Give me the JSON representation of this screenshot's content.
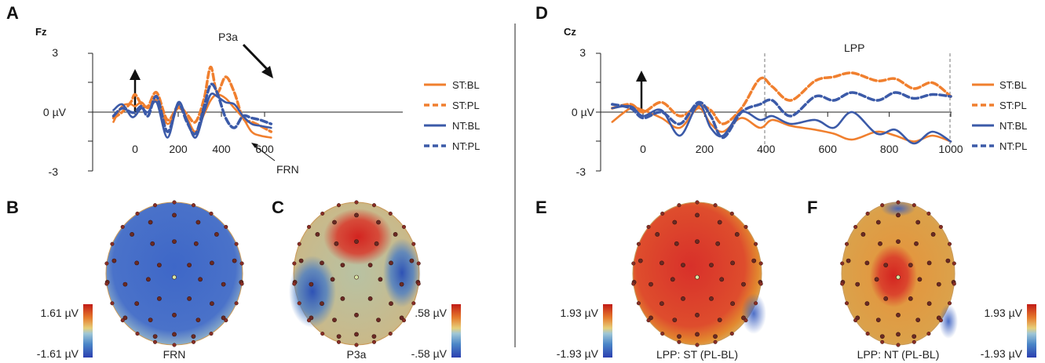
{
  "panels": {
    "A": "A",
    "B": "B",
    "C": "C",
    "D": "D",
    "E": "E",
    "F": "F"
  },
  "erp_left": {
    "electrode": "Fz",
    "y_ticks": [
      "3",
      "0 µV",
      "-3"
    ],
    "x_ticks": [
      "0",
      "200",
      "400",
      "600"
    ],
    "annotations": {
      "p3a": "P3a",
      "frn": "FRN"
    }
  },
  "erp_right": {
    "electrode": "Cz",
    "y_ticks": [
      "3",
      "0 µV",
      "-3"
    ],
    "x_ticks": [
      "0",
      "200",
      "400",
      "600",
      "800",
      "1000"
    ],
    "window_label": "LPP"
  },
  "legend_left": [
    "ST:BL",
    "ST:PL",
    "NT:BL",
    "NT:PL"
  ],
  "legend_right": [
    "ST:BL",
    "ST:PL",
    "NT:BL",
    "NT:PL"
  ],
  "topo": {
    "B": {
      "caption": "FRN",
      "max": "1.61 µV",
      "min": "-1.61 µV"
    },
    "C": {
      "caption": "P3a",
      "max": ".58 µV",
      "min": "-.58 µV"
    },
    "E": {
      "caption": "LPP: ST (PL-BL)",
      "max": "1.93 µV",
      "min": "-1.93 µV"
    },
    "F": {
      "caption": "LPP: NT (PL-BL)",
      "max": "1.93 µV",
      "min": "-1.93 µV"
    }
  },
  "colors": {
    "st": "#f07f2e",
    "nt": "#3b5aa8",
    "red": "#d7261e",
    "blue": "#2c4db3"
  },
  "chart_data": [
    {
      "type": "line",
      "title": "Fz",
      "xlim": [
        -100,
        630
      ],
      "ylim": [
        -3,
        3
      ],
      "series": [
        {
          "name": "ST:BL",
          "x": [
            -100,
            -60,
            -20,
            0,
            30,
            60,
            100,
            150,
            200,
            240,
            280,
            320,
            350,
            380,
            420,
            460,
            500,
            540,
            580,
            630
          ],
          "y": [
            -0.5,
            0.3,
            0.4,
            0.3,
            0.5,
            0.2,
            0.6,
            -0.6,
            0.2,
            -0.3,
            -1.0,
            -0.1,
            0.6,
            0.9,
            0.7,
            0.2,
            -0.3,
            -1.0,
            -1.2,
            -1.3
          ]
        },
        {
          "name": "ST:PL",
          "x": [
            -100,
            -60,
            -20,
            0,
            30,
            60,
            100,
            150,
            200,
            240,
            280,
            320,
            350,
            380,
            420,
            460,
            500,
            540,
            580,
            630
          ],
          "y": [
            -0.3,
            0.0,
            0.5,
            0.9,
            0.4,
            0.3,
            1.0,
            -0.4,
            0.3,
            -0.1,
            -0.5,
            0.7,
            2.3,
            1.0,
            1.8,
            1.0,
            -0.3,
            -0.5,
            -0.7,
            -1.0
          ]
        },
        {
          "name": "NT:BL",
          "x": [
            -100,
            -60,
            -20,
            0,
            30,
            60,
            100,
            150,
            200,
            240,
            280,
            320,
            350,
            380,
            420,
            460,
            500,
            540,
            580,
            630
          ],
          "y": [
            0.1,
            0.4,
            -0.2,
            -0.2,
            0.2,
            0.0,
            0.5,
            -1.3,
            0.5,
            -0.4,
            -1.3,
            0.0,
            0.9,
            0.8,
            0.5,
            0.4,
            -0.2,
            -0.6,
            -0.7,
            -0.8
          ]
        },
        {
          "name": "NT:PL",
          "x": [
            -100,
            -60,
            -20,
            0,
            30,
            60,
            100,
            150,
            200,
            240,
            280,
            320,
            350,
            380,
            420,
            460,
            500,
            540,
            580,
            630
          ],
          "y": [
            -0.2,
            0.2,
            0.0,
            0.0,
            0.3,
            -0.2,
            0.8,
            -1.0,
            0.4,
            -0.5,
            -1.1,
            0.3,
            1.4,
            1.0,
            -0.3,
            -0.8,
            -0.2,
            -0.3,
            -0.4,
            -0.6
          ]
        }
      ]
    },
    {
      "type": "line",
      "title": "Cz",
      "xlim": [
        -100,
        1000
      ],
      "ylim": [
        -3,
        3
      ],
      "series": [
        {
          "name": "ST:BL",
          "x": [
            -100,
            -40,
            0,
            60,
            120,
            180,
            220,
            260,
            320,
            380,
            420,
            480,
            560,
            620,
            680,
            760,
            820,
            880,
            940,
            1000
          ],
          "y": [
            -0.5,
            0.2,
            0.1,
            -0.3,
            -0.8,
            0.2,
            -0.6,
            -1.0,
            -0.3,
            -0.8,
            -0.4,
            -0.7,
            -0.9,
            -1.1,
            -1.4,
            -1.0,
            -1.2,
            -1.5,
            -1.2,
            -1.5
          ]
        },
        {
          "name": "ST:PL",
          "x": [
            -100,
            -40,
            0,
            60,
            120,
            180,
            220,
            260,
            320,
            380,
            420,
            480,
            560,
            620,
            680,
            760,
            820,
            880,
            940,
            1000
          ],
          "y": [
            0.2,
            0.4,
            0.0,
            0.5,
            -0.2,
            0.3,
            0.1,
            -0.6,
            0.2,
            1.7,
            1.3,
            0.6,
            1.6,
            1.8,
            2.0,
            1.6,
            1.7,
            1.2,
            1.5,
            0.8
          ]
        },
        {
          "name": "NT:BL",
          "x": [
            -100,
            -40,
            0,
            60,
            120,
            180,
            220,
            260,
            320,
            380,
            420,
            480,
            560,
            620,
            680,
            760,
            820,
            880,
            940,
            1000
          ],
          "y": [
            0.2,
            0.3,
            -0.2,
            0.1,
            -1.2,
            0.4,
            -0.8,
            -1.2,
            0.0,
            -0.4,
            -0.2,
            -0.6,
            -0.4,
            -0.8,
            0.0,
            -1.1,
            -0.9,
            -1.6,
            -1.0,
            -1.5
          ]
        },
        {
          "name": "NT:PL",
          "x": [
            -100,
            -40,
            0,
            60,
            120,
            180,
            220,
            260,
            320,
            380,
            420,
            480,
            560,
            620,
            680,
            760,
            820,
            880,
            940,
            1000
          ],
          "y": [
            0.4,
            0.2,
            -0.3,
            0.0,
            -0.6,
            0.5,
            -0.2,
            -1.3,
            0.0,
            0.4,
            0.6,
            -0.2,
            0.8,
            0.6,
            1.0,
            0.6,
            1.0,
            0.7,
            0.9,
            0.8
          ]
        }
      ]
    }
  ]
}
